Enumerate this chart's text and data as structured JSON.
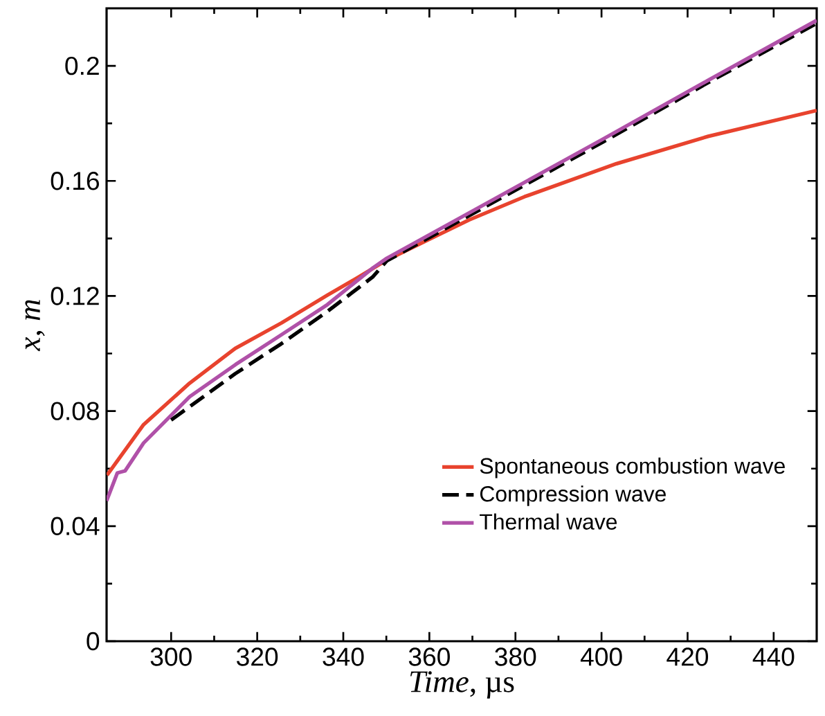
{
  "chart_data": {
    "type": "line",
    "xlabel": "*Time*, µs",
    "ylabel": "x, m",
    "xlim": [
      285,
      450
    ],
    "ylim": [
      0,
      0.22
    ],
    "xticks": [
      300,
      320,
      340,
      360,
      380,
      400,
      420,
      440
    ],
    "yticks": [
      0,
      0.04,
      0.08,
      0.12,
      0.16,
      0.2
    ],
    "grid": false,
    "legend": "bottom right",
    "marker": "none",
    "series": [
      {
        "name": "Spontaneous combustion wave",
        "color": "#e8432e",
        "line_style": "solid",
        "x": [
          285.1,
          293.6,
          304.3,
          314.9,
          325.6,
          336.3,
          343.7,
          350.1,
          359.7,
          369.3,
          382.1,
          403.5,
          424.8,
          450
        ],
        "values": [
          0.0577,
          0.0753,
          0.0897,
          0.1018,
          0.1106,
          0.1203,
          0.1267,
          0.1325,
          0.1395,
          0.1465,
          0.1545,
          0.166,
          0.1755,
          0.1845
        ]
      },
      {
        "name": "Compression wave",
        "color": "#000000",
        "line_style": "dashed",
        "x": [
          300,
          314.9,
          325.6,
          336.3,
          346.9,
          350.1,
          400.3,
          424.8,
          450
        ],
        "values": [
          0.0769,
          0.093,
          0.1034,
          0.1146,
          0.1267,
          0.1322,
          0.1735,
          0.1942,
          0.2148
        ]
      },
      {
        "name": "Thermal wave",
        "color": "#b051a8",
        "line_style": "solid",
        "x": [
          285,
          287.5,
          289.3,
          293.6,
          304.3,
          315,
          325.7,
          336.3,
          347,
          350.1,
          400.3,
          424.8,
          450
        ],
        "values": [
          0.0488,
          0.0585,
          0.0592,
          0.0689,
          0.085,
          0.0962,
          0.1066,
          0.117,
          0.1299,
          0.1331,
          0.1745,
          0.195,
          0.2158
        ]
      }
    ]
  }
}
